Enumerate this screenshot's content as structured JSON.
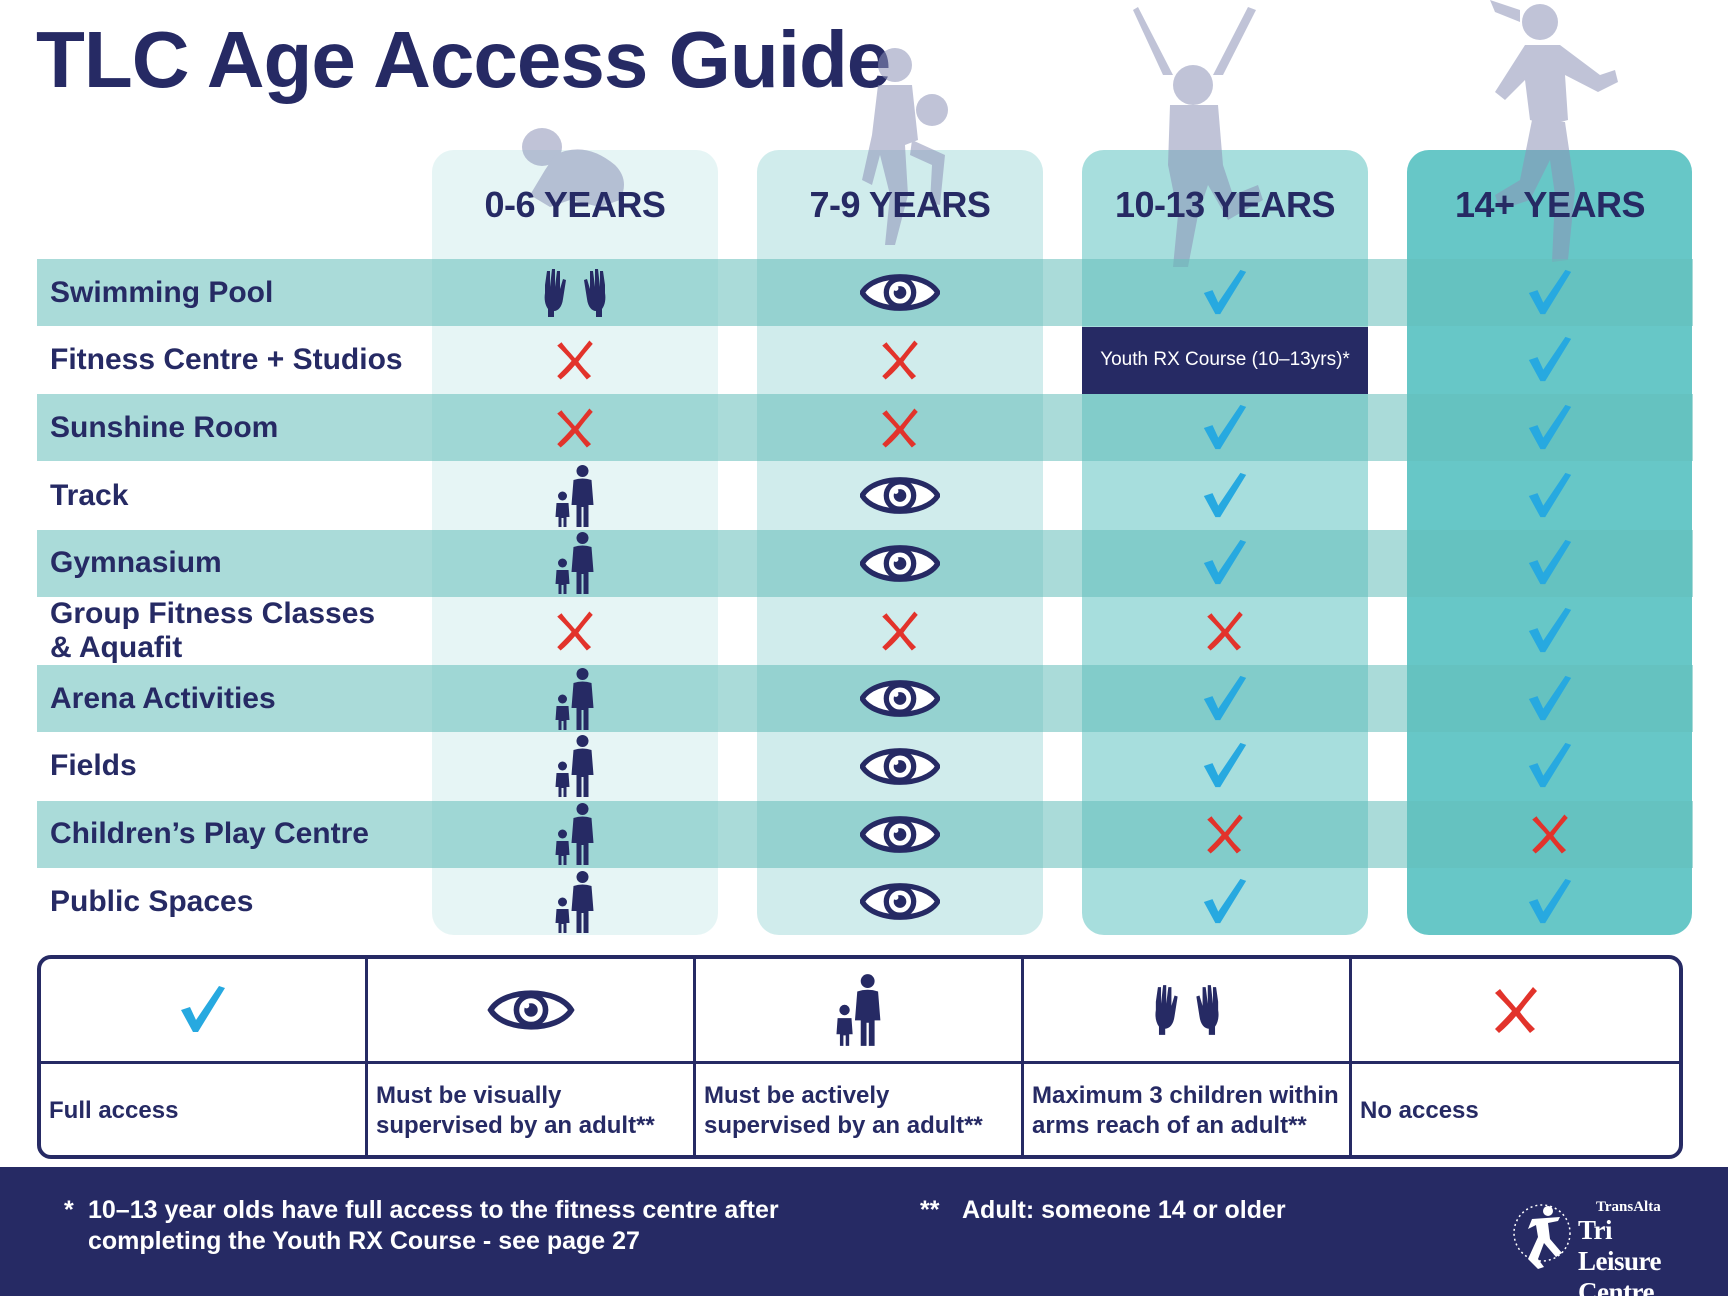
{
  "title": "TLC Age Access Guide",
  "columns": [
    {
      "label": "0-6 YEARS"
    },
    {
      "label": "7-9 YEARS"
    },
    {
      "label": "10-13 YEARS"
    },
    {
      "label": "14+ YEARS"
    }
  ],
  "rows": [
    {
      "label": "Swimming Pool",
      "cells": [
        "hands",
        "eye",
        "check",
        "check"
      ]
    },
    {
      "label": "Fitness Centre + Studios",
      "cells": [
        "cross",
        "cross",
        "note",
        "check"
      ],
      "note": "Youth RX Course (10–13yrs)*"
    },
    {
      "label": "Sunshine Room",
      "cells": [
        "cross",
        "cross",
        "check",
        "check"
      ]
    },
    {
      "label": "Track",
      "cells": [
        "adult",
        "eye",
        "check",
        "check"
      ]
    },
    {
      "label": "Gymnasium",
      "cells": [
        "adult",
        "eye",
        "check",
        "check"
      ]
    },
    {
      "label": "Group Fitness Classes",
      "label2": "& Aquafit",
      "cells": [
        "cross",
        "cross",
        "cross",
        "check"
      ]
    },
    {
      "label": "Arena Activities",
      "cells": [
        "adult",
        "eye",
        "check",
        "check"
      ]
    },
    {
      "label": "Fields",
      "cells": [
        "adult",
        "eye",
        "check",
        "check"
      ]
    },
    {
      "label": "Children’s Play Centre",
      "cells": [
        "adult",
        "eye",
        "cross",
        "cross"
      ]
    },
    {
      "label": "Public Spaces",
      "cells": [
        "adult",
        "eye",
        "check",
        "check"
      ]
    }
  ],
  "legend": [
    {
      "icon": "check-icon",
      "text": "Full access"
    },
    {
      "icon": "eye-icon",
      "text": "Must be visually supervised by an adult**"
    },
    {
      "icon": "adult-child-icon",
      "text": "Must be actively supervised by an adult**"
    },
    {
      "icon": "hands-icon",
      "text": "Maximum 3 children within arms reach of an adult**"
    },
    {
      "icon": "cross-icon",
      "text": "No access"
    }
  ],
  "footnotes": {
    "note1_mark": "*",
    "note1": "10–13 year olds have full access to the fitness centre after completing the Youth RX Course - see page 27",
    "note2_mark": "**",
    "note2": "Adult: someone 14 or older"
  },
  "logo": {
    "top": "TransAlta",
    "main": "Tri Leisure Centre"
  },
  "colors": {
    "navy": "#262a64",
    "check": "#27a9e0",
    "cross": "#e2332b",
    "band": "#64beb9"
  }
}
